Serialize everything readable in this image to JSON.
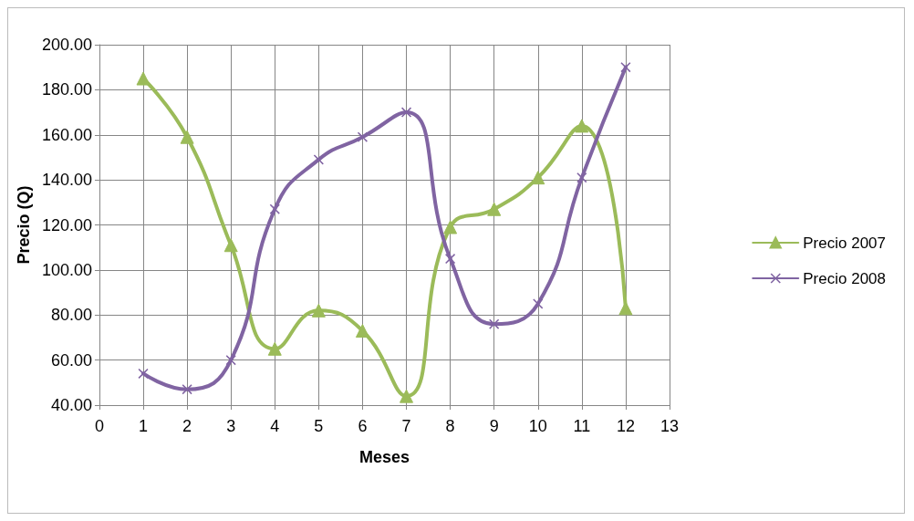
{
  "chart_data": {
    "type": "line",
    "xlabel": "Meses",
    "ylabel": "Precio (Q)",
    "x": [
      1,
      2,
      3,
      4,
      5,
      6,
      7,
      8,
      9,
      10,
      11,
      12
    ],
    "series": [
      {
        "name": "Precio 2007",
        "color": "#9bbb59",
        "marker": "triangle",
        "values": [
          185,
          159,
          111,
          65,
          82,
          73,
          44,
          119,
          127,
          141,
          164,
          83
        ]
      },
      {
        "name": "Precio 2008",
        "color": "#8064a2",
        "marker": "cross",
        "values": [
          54,
          47,
          60,
          127,
          149,
          159,
          170,
          105,
          76,
          85,
          141,
          190
        ]
      }
    ],
    "xlim": [
      0,
      13
    ],
    "xticks": [
      0,
      1,
      2,
      3,
      4,
      5,
      6,
      7,
      8,
      9,
      10,
      11,
      12,
      13
    ],
    "ylim": [
      40,
      200
    ],
    "yticks": [
      {
        "value": 40,
        "label": "40.00"
      },
      {
        "value": 60,
        "label": "60.00"
      },
      {
        "value": 80,
        "label": "80.00"
      },
      {
        "value": 100,
        "label": "100.00"
      },
      {
        "value": 120,
        "label": "120.00"
      },
      {
        "value": 140,
        "label": "140.00"
      },
      {
        "value": 160,
        "label": "160.00"
      },
      {
        "value": 180,
        "label": "180.00"
      },
      {
        "value": 200,
        "label": "200.00"
      }
    ],
    "grid": true,
    "legend": "right",
    "line_style": "solid"
  }
}
